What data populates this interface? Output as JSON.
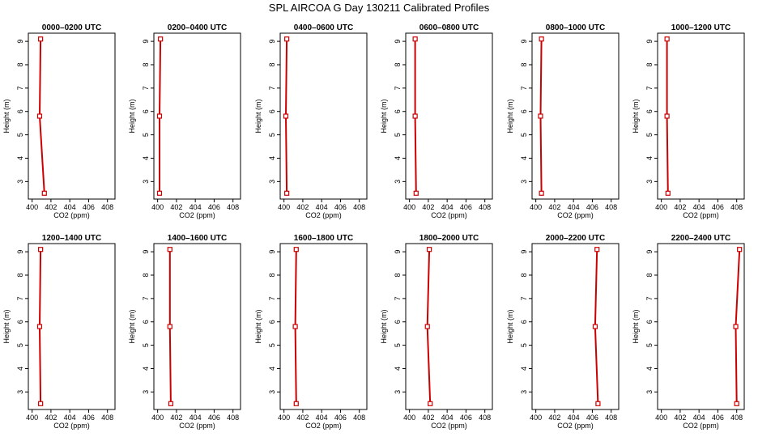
{
  "title": "SPL AIRCOA G  Day 130211  Calibrated Profiles",
  "chart_data": {
    "type": "line",
    "xlabel": "CO2 (ppm)",
    "ylabel": "Height (m)",
    "xlim": [
      400,
      408
    ],
    "ylim": [
      2.5,
      9.1
    ],
    "x_ticks": [
      "400",
      "402",
      "404",
      "406",
      "408"
    ],
    "y_ticks": [
      "3",
      "4",
      "5",
      "6",
      "7",
      "8",
      "9"
    ],
    "line_color": "#cc0000",
    "panels": [
      {
        "title": "0000–0200 UTC",
        "points": [
          {
            "x": 401.3,
            "y": 2.5
          },
          {
            "x": 400.8,
            "y": 5.8
          },
          {
            "x": 400.9,
            "y": 9.1
          }
        ]
      },
      {
        "title": "0200–0400 UTC",
        "points": [
          {
            "x": 400.2,
            "y": 2.5
          },
          {
            "x": 400.2,
            "y": 5.8
          },
          {
            "x": 400.3,
            "y": 9.1
          }
        ]
      },
      {
        "title": "0400–0600 UTC",
        "points": [
          {
            "x": 400.3,
            "y": 2.5
          },
          {
            "x": 400.2,
            "y": 5.8
          },
          {
            "x": 400.3,
            "y": 9.1
          }
        ]
      },
      {
        "title": "0600–0800 UTC",
        "points": [
          {
            "x": 400.7,
            "y": 2.5
          },
          {
            "x": 400.6,
            "y": 5.8
          },
          {
            "x": 400.6,
            "y": 9.1
          }
        ]
      },
      {
        "title": "0800–1000 UTC",
        "points": [
          {
            "x": 400.6,
            "y": 2.5
          },
          {
            "x": 400.5,
            "y": 5.8
          },
          {
            "x": 400.6,
            "y": 9.1
          }
        ]
      },
      {
        "title": "1000–1200 UTC",
        "points": [
          {
            "x": 400.7,
            "y": 2.5
          },
          {
            "x": 400.6,
            "y": 5.8
          },
          {
            "x": 400.6,
            "y": 9.1
          }
        ]
      },
      {
        "title": "1200–1400 UTC",
        "points": [
          {
            "x": 400.9,
            "y": 2.5
          },
          {
            "x": 400.8,
            "y": 5.8
          },
          {
            "x": 400.9,
            "y": 9.1
          }
        ]
      },
      {
        "title": "1400–1600 UTC",
        "points": [
          {
            "x": 401.4,
            "y": 2.5
          },
          {
            "x": 401.3,
            "y": 5.8
          },
          {
            "x": 401.3,
            "y": 9.1
          }
        ]
      },
      {
        "title": "1600–1800 UTC",
        "points": [
          {
            "x": 401.3,
            "y": 2.5
          },
          {
            "x": 401.2,
            "y": 5.8
          },
          {
            "x": 401.3,
            "y": 9.1
          }
        ]
      },
      {
        "title": "1800–2000 UTC",
        "points": [
          {
            "x": 402.2,
            "y": 2.5
          },
          {
            "x": 401.9,
            "y": 5.8
          },
          {
            "x": 402.1,
            "y": 9.1
          }
        ]
      },
      {
        "title": "2000–2200 UTC",
        "points": [
          {
            "x": 406.6,
            "y": 2.5
          },
          {
            "x": 406.3,
            "y": 5.8
          },
          {
            "x": 406.5,
            "y": 9.1
          }
        ]
      },
      {
        "title": "2200–2400 UTC",
        "points": [
          {
            "x": 408.0,
            "y": 2.5
          },
          {
            "x": 407.9,
            "y": 5.8
          },
          {
            "x": 408.3,
            "y": 9.1
          }
        ]
      }
    ]
  }
}
